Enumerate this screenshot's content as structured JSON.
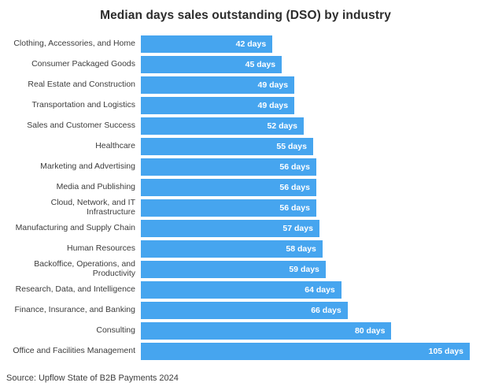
{
  "chart_data": {
    "type": "bar",
    "orientation": "horizontal",
    "title": "Median days sales outstanding (DSO) by industry",
    "source": "Source: Upflow State of B2B Payments 2024",
    "value_suffix": " days",
    "xlim": [
      0,
      105
    ],
    "grid": false,
    "legend": false,
    "bar_color": "#46a5ef",
    "value_label_color": "#ffffff",
    "categories": [
      "Clothing, Accessories, and Home",
      "Consumer Packaged Goods",
      "Real Estate and Construction",
      "Transportation and Logistics",
      "Sales and Customer Success",
      "Healthcare",
      "Marketing and Advertising",
      "Media and Publishing",
      "Cloud, Network, and IT Infrastructure",
      "Manufacturing and Supply Chain",
      "Human Resources",
      "Backoffice, Operations, and Productivity",
      "Research, Data, and Intelligence",
      "Finance, Insurance, and Banking",
      "Consulting",
      "Office and Facilities Management"
    ],
    "values": [
      42,
      45,
      49,
      49,
      52,
      55,
      56,
      56,
      56,
      57,
      58,
      59,
      64,
      66,
      80,
      105
    ],
    "value_labels": [
      "42 days",
      "45 days",
      "49 days",
      "49 days",
      "52 days",
      "55 days",
      "56 days",
      "56 days",
      "56 days",
      "57 days",
      "58 days",
      "59 days",
      "64 days",
      "66 days",
      "80 days",
      "105 days"
    ]
  }
}
